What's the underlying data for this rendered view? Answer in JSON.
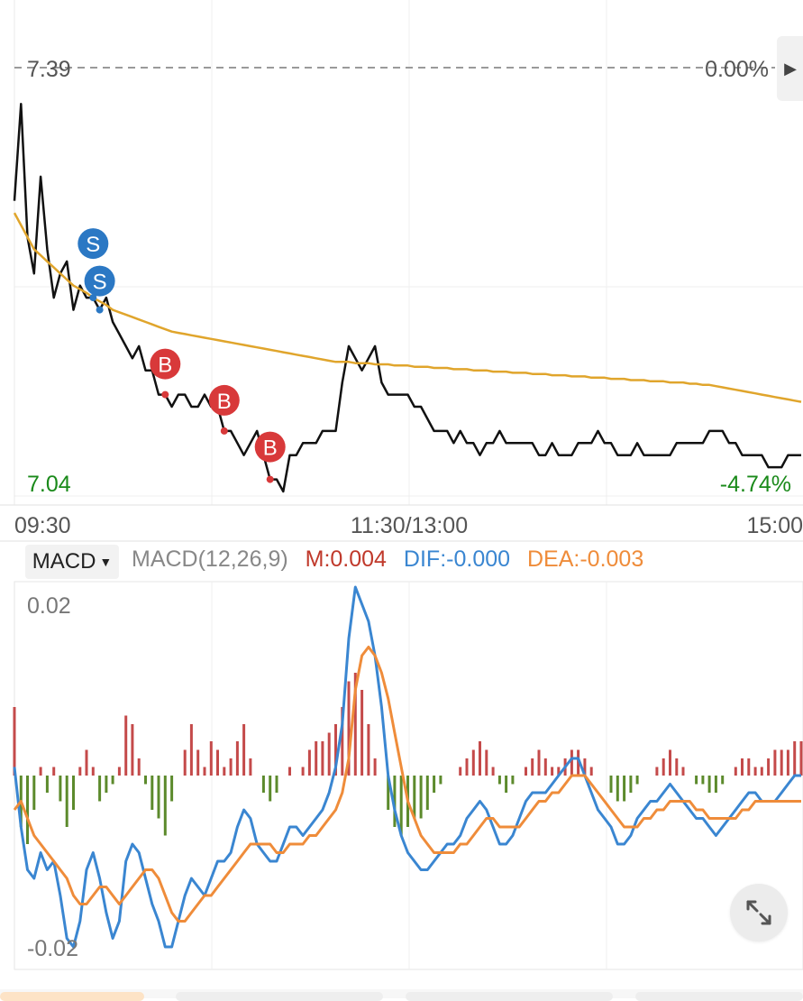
{
  "price_chart": {
    "price_high_label": "7.39",
    "pct_high_label": "0.00%",
    "price_low_label": "7.04",
    "pct_low_label": "-4.74%",
    "time_labels": [
      "09:30",
      "11:30/13:00",
      "15:00"
    ],
    "colors": {
      "price_line": "#111111",
      "avg_line": "#e0a52c",
      "buy": "#d8393a",
      "sell": "#2b78c4",
      "low_label": "#1a8a1a",
      "axis_text": "#555555",
      "dashed": "#9a9a9a"
    },
    "trade_markers": [
      {
        "label": "S",
        "type": "sell"
      },
      {
        "label": "S",
        "type": "sell"
      },
      {
        "label": "B",
        "type": "buy"
      },
      {
        "label": "B",
        "type": "buy"
      },
      {
        "label": "B",
        "type": "buy"
      }
    ]
  },
  "macd_panel": {
    "tab_label": "MACD",
    "params_label": "MACD(12,26,9)",
    "m_label": "M:0.004",
    "dif_label": "DIF:-0.000",
    "dea_label": "DEA:-0.003",
    "y_top_label": "0.02",
    "y_bottom_label": "-0.02",
    "colors": {
      "params": "#888888",
      "m": "#c0392b",
      "dif": "#3a86d1",
      "dea": "#ef8c3a",
      "pos_bar": "#c44a4a",
      "neg_bar": "#5c8a2c"
    }
  },
  "chart_data": [
    {
      "type": "line",
      "title": "",
      "ylim": [
        7.04,
        7.39
      ],
      "x_ticks": [
        "09:30",
        "11:30/13:00",
        "15:00"
      ],
      "y_ticks": [
        "7.39",
        "7.04"
      ],
      "right_axis_ticks": [
        "0.00%",
        "-4.74%"
      ],
      "x": [
        0,
        2,
        4,
        6,
        8,
        10,
        12,
        14,
        16,
        18,
        20,
        22,
        24,
        26,
        28,
        30,
        32,
        34,
        36,
        38,
        40,
        42,
        44,
        46,
        48,
        50,
        52,
        54,
        56,
        58,
        60,
        62,
        64,
        66,
        68,
        70,
        72,
        74,
        76,
        78,
        80,
        82,
        84,
        86,
        88,
        90,
        92,
        94,
        96,
        98,
        100,
        102,
        104,
        106,
        108,
        110,
        112,
        114,
        116,
        118,
        120,
        122,
        124,
        126,
        128,
        130,
        132,
        134,
        136,
        138,
        140,
        142,
        144,
        146,
        148,
        150,
        152,
        154,
        156,
        158,
        160,
        162,
        164,
        166,
        168,
        170,
        172,
        174,
        176,
        178,
        180,
        182,
        184,
        186,
        188,
        190,
        192,
        194,
        196,
        198,
        200,
        202,
        204,
        206,
        208,
        210,
        212,
        214,
        216,
        218,
        220,
        222,
        224,
        226,
        228,
        230,
        232,
        234,
        236,
        238,
        240
      ],
      "series": [
        {
          "values": [
            7.28,
            7.36,
            7.25,
            7.22,
            7.3,
            7.24,
            7.2,
            7.22,
            7.23,
            7.19,
            7.21,
            7.2,
            7.2,
            7.19,
            7.2,
            7.18,
            7.17,
            7.16,
            7.15,
            7.16,
            7.14,
            7.14,
            7.12,
            7.12,
            7.11,
            7.12,
            7.12,
            7.11,
            7.11,
            7.12,
            7.11,
            7.11,
            7.09,
            7.09,
            7.08,
            7.07,
            7.08,
            7.09,
            7.07,
            7.05,
            7.05,
            7.04,
            7.07,
            7.07,
            7.08,
            7.08,
            7.08,
            7.09,
            7.09,
            7.09,
            7.13,
            7.16,
            7.15,
            7.14,
            7.15,
            7.16,
            7.13,
            7.12,
            7.12,
            7.12,
            7.12,
            7.11,
            7.11,
            7.1,
            7.09,
            7.09,
            7.09,
            7.08,
            7.09,
            7.08,
            7.08,
            7.07,
            7.08,
            7.08,
            7.09,
            7.08,
            7.08,
            7.08,
            7.08,
            7.08,
            7.07,
            7.07,
            7.08,
            7.07,
            7.07,
            7.07,
            7.08,
            7.08,
            7.08,
            7.09,
            7.08,
            7.08,
            7.07,
            7.07,
            7.07,
            7.08,
            7.07,
            7.07,
            7.07,
            7.07,
            7.07,
            7.08,
            7.08,
            7.08,
            7.08,
            7.08,
            7.09,
            7.09,
            7.09,
            7.08,
            7.08,
            7.07,
            7.07,
            7.07,
            7.07,
            7.06,
            7.06,
            7.06,
            7.07,
            7.07,
            7.07
          ]
        },
        {
          "values": [
            7.27,
            7.26,
            7.25,
            7.24,
            7.235,
            7.23,
            7.225,
            7.22,
            7.215,
            7.21,
            7.207,
            7.204,
            7.2,
            7.197,
            7.194,
            7.19,
            7.188,
            7.186,
            7.184,
            7.182,
            7.18,
            7.178,
            7.176,
            7.174,
            7.172,
            7.171,
            7.17,
            7.169,
            7.168,
            7.167,
            7.166,
            7.165,
            7.164,
            7.163,
            7.162,
            7.161,
            7.16,
            7.159,
            7.158,
            7.157,
            7.156,
            7.155,
            7.154,
            7.153,
            7.152,
            7.151,
            7.15,
            7.149,
            7.148,
            7.147,
            7.147,
            7.147,
            7.146,
            7.146,
            7.146,
            7.145,
            7.145,
            7.145,
            7.144,
            7.144,
            7.144,
            7.143,
            7.143,
            7.143,
            7.142,
            7.142,
            7.142,
            7.141,
            7.141,
            7.141,
            7.14,
            7.14,
            7.14,
            7.139,
            7.139,
            7.139,
            7.138,
            7.138,
            7.138,
            7.137,
            7.137,
            7.137,
            7.136,
            7.136,
            7.136,
            7.135,
            7.135,
            7.135,
            7.134,
            7.134,
            7.134,
            7.133,
            7.133,
            7.133,
            7.132,
            7.132,
            7.132,
            7.131,
            7.131,
            7.131,
            7.13,
            7.13,
            7.13,
            7.129,
            7.129,
            7.128,
            7.128,
            7.127,
            7.126,
            7.125,
            7.124,
            7.123,
            7.122,
            7.121,
            7.12,
            7.119,
            7.118,
            7.117,
            7.116,
            7.115,
            7.114
          ]
        }
      ]
    },
    {
      "type": "bar",
      "title": "MACD(12,26,9)",
      "ylim": [
        -0.022,
        0.022
      ],
      "y_ticks": [
        "0.02",
        "-0.02"
      ],
      "x": [
        0,
        2,
        4,
        6,
        8,
        10,
        12,
        14,
        16,
        18,
        20,
        22,
        24,
        26,
        28,
        30,
        32,
        34,
        36,
        38,
        40,
        42,
        44,
        46,
        48,
        50,
        52,
        54,
        56,
        58,
        60,
        62,
        64,
        66,
        68,
        70,
        72,
        74,
        76,
        78,
        80,
        82,
        84,
        86,
        88,
        90,
        92,
        94,
        96,
        98,
        100,
        102,
        104,
        106,
        108,
        110,
        112,
        114,
        116,
        118,
        120,
        122,
        124,
        126,
        128,
        130,
        132,
        134,
        136,
        138,
        140,
        142,
        144,
        146,
        148,
        150,
        152,
        154,
        156,
        158,
        160,
        162,
        164,
        166,
        168,
        170,
        172,
        174,
        176,
        178,
        180,
        182,
        184,
        186,
        188,
        190,
        192,
        194,
        196,
        198,
        200,
        202,
        204,
        206,
        208,
        210,
        212,
        214,
        216,
        218,
        220,
        222,
        224,
        226,
        228,
        230,
        232,
        234,
        236,
        238,
        240
      ],
      "series": [
        {
          "name": "M",
          "values": [
            0.008,
            -0.006,
            -0.008,
            -0.004,
            0.001,
            -0.002,
            0.001,
            -0.003,
            -0.006,
            -0.004,
            0.001,
            0.003,
            0.001,
            -0.003,
            -0.002,
            -0.001,
            0.001,
            0.007,
            0.006,
            0.002,
            -0.001,
            -0.004,
            -0.005,
            -0.007,
            -0.003,
            0.0,
            0.003,
            0.006,
            0.003,
            0.001,
            0.004,
            0.003,
            0.001,
            0.002,
            0.004,
            0.006,
            0.002,
            0.0,
            -0.002,
            -0.003,
            -0.002,
            0.0,
            0.001,
            0.0,
            0.001,
            0.003,
            0.004,
            0.004,
            0.005,
            0.006,
            0.008,
            0.011,
            0.012,
            0.01,
            0.006,
            0.002,
            0.0,
            -0.004,
            -0.006,
            -0.007,
            -0.006,
            -0.005,
            -0.005,
            -0.004,
            -0.002,
            -0.001,
            0.0,
            0.0,
            0.001,
            0.002,
            0.003,
            0.004,
            0.003,
            0.001,
            -0.001,
            -0.002,
            -0.001,
            0.0,
            0.001,
            0.002,
            0.003,
            0.002,
            0.001,
            0.001,
            0.002,
            0.003,
            0.003,
            0.002,
            0.001,
            0.0,
            0.0,
            -0.002,
            -0.003,
            -0.003,
            -0.002,
            -0.001,
            0.0,
            0.0,
            0.001,
            0.002,
            0.003,
            0.002,
            0.001,
            0.0,
            -0.001,
            -0.001,
            -0.002,
            -0.002,
            -0.001,
            0.0,
            0.001,
            0.002,
            0.002,
            0.001,
            0.001,
            0.002,
            0.003,
            0.003,
            0.003,
            0.004,
            0.004
          ]
        },
        {
          "name": "DIF",
          "values": [
            0.001,
            -0.006,
            -0.011,
            -0.012,
            -0.009,
            -0.011,
            -0.01,
            -0.014,
            -0.019,
            -0.02,
            -0.017,
            -0.011,
            -0.009,
            -0.012,
            -0.016,
            -0.019,
            -0.017,
            -0.01,
            -0.008,
            -0.009,
            -0.012,
            -0.015,
            -0.017,
            -0.02,
            -0.02,
            -0.017,
            -0.014,
            -0.012,
            -0.013,
            -0.014,
            -0.012,
            -0.01,
            -0.01,
            -0.009,
            -0.006,
            -0.004,
            -0.005,
            -0.008,
            -0.009,
            -0.01,
            -0.01,
            -0.008,
            -0.006,
            -0.006,
            -0.007,
            -0.006,
            -0.005,
            -0.004,
            -0.002,
            0.001,
            0.006,
            0.016,
            0.022,
            0.02,
            0.018,
            0.014,
            0.008,
            0.0,
            -0.004,
            -0.007,
            -0.009,
            -0.01,
            -0.011,
            -0.011,
            -0.01,
            -0.009,
            -0.008,
            -0.008,
            -0.007,
            -0.005,
            -0.004,
            -0.003,
            -0.004,
            -0.006,
            -0.008,
            -0.008,
            -0.007,
            -0.005,
            -0.003,
            -0.002,
            -0.002,
            -0.002,
            -0.001,
            0.0,
            0.001,
            0.002,
            0.002,
            0.0,
            -0.002,
            -0.004,
            -0.005,
            -0.006,
            -0.008,
            -0.008,
            -0.007,
            -0.005,
            -0.004,
            -0.003,
            -0.003,
            -0.002,
            -0.001,
            -0.002,
            -0.003,
            -0.004,
            -0.005,
            -0.005,
            -0.006,
            -0.007,
            -0.006,
            -0.005,
            -0.004,
            -0.003,
            -0.002,
            -0.002,
            -0.003,
            -0.003,
            -0.003,
            -0.002,
            -0.001,
            0.0,
            0.0
          ]
        },
        {
          "name": "DEA",
          "values": [
            -0.004,
            -0.003,
            -0.005,
            -0.007,
            -0.008,
            -0.009,
            -0.01,
            -0.011,
            -0.012,
            -0.014,
            -0.015,
            -0.015,
            -0.014,
            -0.013,
            -0.013,
            -0.014,
            -0.015,
            -0.014,
            -0.013,
            -0.012,
            -0.011,
            -0.011,
            -0.012,
            -0.014,
            -0.016,
            -0.017,
            -0.017,
            -0.016,
            -0.015,
            -0.014,
            -0.014,
            -0.013,
            -0.012,
            -0.011,
            -0.01,
            -0.009,
            -0.008,
            -0.008,
            -0.008,
            -0.008,
            -0.009,
            -0.009,
            -0.008,
            -0.008,
            -0.008,
            -0.007,
            -0.007,
            -0.006,
            -0.005,
            -0.004,
            -0.002,
            0.002,
            0.01,
            0.014,
            0.015,
            0.014,
            0.012,
            0.009,
            0.005,
            0.001,
            -0.003,
            -0.005,
            -0.007,
            -0.008,
            -0.009,
            -0.009,
            -0.009,
            -0.009,
            -0.008,
            -0.008,
            -0.007,
            -0.006,
            -0.005,
            -0.005,
            -0.006,
            -0.006,
            -0.006,
            -0.006,
            -0.005,
            -0.004,
            -0.003,
            -0.003,
            -0.002,
            -0.002,
            -0.001,
            0.0,
            0.0,
            0.0,
            -0.001,
            -0.002,
            -0.003,
            -0.004,
            -0.005,
            -0.006,
            -0.006,
            -0.006,
            -0.005,
            -0.005,
            -0.004,
            -0.004,
            -0.003,
            -0.003,
            -0.003,
            -0.003,
            -0.004,
            -0.004,
            -0.005,
            -0.005,
            -0.005,
            -0.005,
            -0.005,
            -0.004,
            -0.004,
            -0.003,
            -0.003,
            -0.003,
            -0.003,
            -0.003,
            -0.003,
            -0.003,
            -0.003
          ]
        }
      ]
    }
  ]
}
